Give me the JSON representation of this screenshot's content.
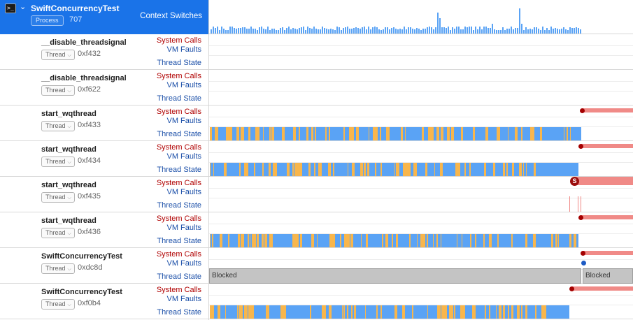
{
  "process": {
    "icon": "terminal-icon",
    "name": "SwiftConcurrencyTest",
    "badge": "Process",
    "pid": "707",
    "track_label": "Context Switches"
  },
  "thread_badge": "Thread",
  "track_labels": {
    "system_calls": "System Calls",
    "vm_faults": "VM Faults",
    "thread_state": "Thread State"
  },
  "blocked_label": "Blocked",
  "syscall_badge": "S",
  "colors": {
    "header_bg": "#1a73e8",
    "running": "#5aa3f5",
    "preempted": "#f8b64c",
    "syscall_bar": "#f08a87",
    "syscall_dot": "#a40000",
    "vm_dot": "#1d5bc4",
    "blocked_bg": "#c4c4c4"
  },
  "threads": [
    {
      "name": "__disable_threadsignal",
      "tid": "0xf432"
    },
    {
      "name": "__disable_threadsignal",
      "tid": "0xf622"
    },
    {
      "name": "start_wqthread",
      "tid": "0xf433"
    },
    {
      "name": "start_wqthread",
      "tid": "0xf434"
    },
    {
      "name": "start_wqthread",
      "tid": "0xf435"
    },
    {
      "name": "start_wqthread",
      "tid": "0xf436"
    },
    {
      "name": "SwiftConcurrencyTest",
      "tid": "0xdc8d"
    },
    {
      "name": "SwiftConcurrencyTest",
      "tid": "0xf0b4"
    }
  ]
}
